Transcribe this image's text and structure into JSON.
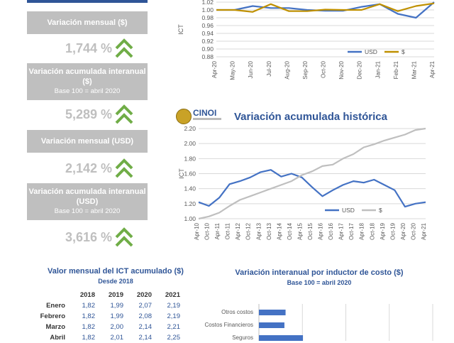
{
  "left_panel": {
    "indicators": [
      {
        "label": "Variación mensual ($)",
        "sub": "",
        "value": "1,744 %"
      },
      {
        "label": "Variación acumulada interanual ($)",
        "sub": "Base 100 = abril 2020",
        "value": "5,289 %"
      },
      {
        "label": "Variación mensual (USD)",
        "sub": "",
        "value": "2,142 %"
      },
      {
        "label": "Variación acumulada interanual (USD)",
        "sub": "Base 100 = abril 2020",
        "value": "3,616 %"
      }
    ],
    "arrow_icon": "double-chevron-up-icon",
    "arrow_color": "#70ad47"
  },
  "table": {
    "title": "Valor mensual del ICT acumulado ($)",
    "subtitle": "Desde 2018",
    "years": [
      "2018",
      "2019",
      "2020",
      "2021"
    ],
    "rows": [
      {
        "month": "Enero",
        "values": [
          "1,82",
          "1,99",
          "2,07",
          "2,19"
        ]
      },
      {
        "month": "Febrero",
        "values": [
          "1,82",
          "1,99",
          "2,08",
          "2,19"
        ]
      },
      {
        "month": "Marzo",
        "values": [
          "1,82",
          "2,00",
          "2,14",
          "2,21"
        ]
      },
      {
        "month": "Abril",
        "values": [
          "1,82",
          "2,01",
          "2,14",
          "2,25"
        ]
      }
    ]
  },
  "logo": {
    "brand": "CINOI"
  },
  "colors": {
    "usd": "#4472c4",
    "peso_gold": "#bf9000",
    "peso_grey": "#bfbfbf",
    "title_blue": "#2f5597"
  },
  "chart_data": [
    {
      "type": "line",
      "title": "",
      "ylabel": "ICT",
      "ylim": [
        0.88,
        1.02
      ],
      "yticks": [
        "0.88",
        "0.90",
        "0.92",
        "0.94",
        "0.96",
        "0.98",
        "1.00",
        "1.02"
      ],
      "categories": [
        "Apr-20",
        "May-20",
        "Jun-20",
        "Jul-20",
        "Aug-20",
        "Sep-20",
        "Oct-20",
        "Nov-20",
        "Dec-20",
        "Jan-21",
        "Feb-21",
        "Mar-21",
        "Apr-21"
      ],
      "series": [
        {
          "name": "USD",
          "values": [
            1.0,
            1.0,
            1.01,
            1.005,
            1.005,
            1.0,
            0.998,
            0.998,
            1.008,
            1.015,
            0.99,
            0.98,
            1.02
          ]
        },
        {
          "name": "$",
          "values": [
            1.0,
            1.0,
            0.995,
            1.015,
            0.997,
            0.997,
            1.001,
            1.0,
            1.0,
            1.015,
            0.997,
            1.01,
            1.017
          ]
        }
      ],
      "grid": true,
      "legend": "bottom-right"
    },
    {
      "type": "line",
      "title": "Variación acumulada histórica",
      "ylabel": "ICT",
      "ylim": [
        1.0,
        2.2
      ],
      "yticks": [
        "1.00",
        "1.20",
        "1.40",
        "1.60",
        "1.80",
        "2.00",
        "2.20"
      ],
      "categories": [
        "Apr-10",
        "Oct-10",
        "Apr-11",
        "Oct-11",
        "Apr-12",
        "Oct-12",
        "Apr-13",
        "Oct-13",
        "Apr-14",
        "Oct-14",
        "Apr-15",
        "Oct-15",
        "Apr-16",
        "Oct-16",
        "Apr-17",
        "Oct-17",
        "Apr-18",
        "Oct-18",
        "Apr-19",
        "Oct-19",
        "Apr-20",
        "Oct-20",
        "Apr-21"
      ],
      "series": [
        {
          "name": "USD",
          "values": [
            1.22,
            1.17,
            1.28,
            1.46,
            1.5,
            1.55,
            1.62,
            1.65,
            1.56,
            1.6,
            1.55,
            1.42,
            1.3,
            1.38,
            1.45,
            1.5,
            1.48,
            1.52,
            1.45,
            1.38,
            1.16,
            1.2,
            1.22
          ]
        },
        {
          "name": "$",
          "values": [
            1.0,
            1.03,
            1.08,
            1.17,
            1.25,
            1.3,
            1.35,
            1.4,
            1.45,
            1.5,
            1.58,
            1.63,
            1.7,
            1.72,
            1.8,
            1.86,
            1.95,
            1.99,
            2.04,
            2.08,
            2.12,
            2.18,
            2.2
          ]
        }
      ],
      "grid": true,
      "legend": "bottom-center"
    },
    {
      "type": "bar",
      "orientation": "horizontal",
      "title": "Variación interanual por inductor de costo ($)",
      "subtitle": "Base 100 = abril 2020",
      "categories": [
        "Otros costos",
        "Costos Financieros",
        "Seguros"
      ],
      "values": [
        4.6,
        4.4,
        7.6
      ],
      "xlim": [
        0,
        30
      ],
      "grid": true
    }
  ]
}
